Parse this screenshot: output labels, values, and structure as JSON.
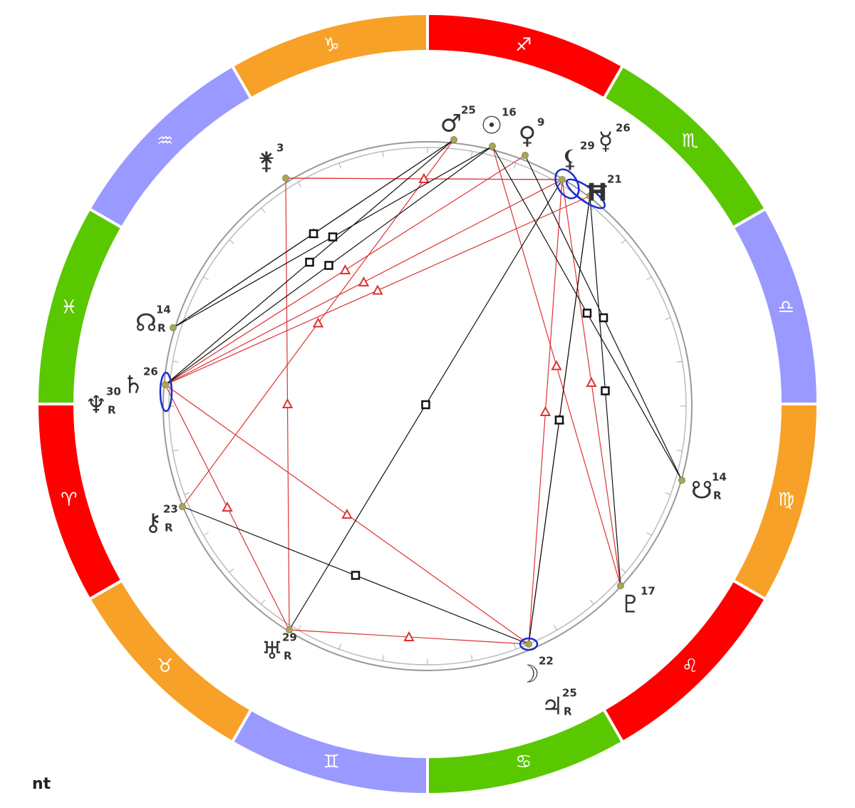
{
  "signs": [
    "♐",
    "♏",
    "♎",
    "♍",
    "♌",
    "♋",
    "♊",
    "♉",
    "♈",
    "♓",
    "♒",
    "♑"
  ],
  "planets": [
    {
      "glyph": "♂",
      "degree": 25
    },
    {
      "glyph": "☉",
      "degree": 16
    },
    {
      "glyph": "♀",
      "degree": 9
    },
    {
      "glyph": "⚸",
      "degree": 29
    },
    {
      "glyph": "☿",
      "degree": 26
    },
    {
      "glyph": "Ħ",
      "degree": 21
    },
    {
      "glyph": "⚵",
      "degree": 3
    },
    {
      "glyph": "☊",
      "degree": 14,
      "retro": "R"
    },
    {
      "glyph": "♄",
      "degree": 26
    },
    {
      "glyph": "♆",
      "degree": 30,
      "retro": "R"
    },
    {
      "glyph": "⚷",
      "degree": 23,
      "retro": "R"
    },
    {
      "glyph": "♅",
      "degree": 29,
      "retro": "R"
    },
    {
      "glyph": "☽",
      "degree": 22
    },
    {
      "glyph": "♃",
      "degree": 25,
      "retro": "R"
    },
    {
      "glyph": "♇",
      "degree": 17
    },
    {
      "glyph": "☋",
      "degree": 14,
      "retro": "R"
    }
  ],
  "footer": "nt"
}
